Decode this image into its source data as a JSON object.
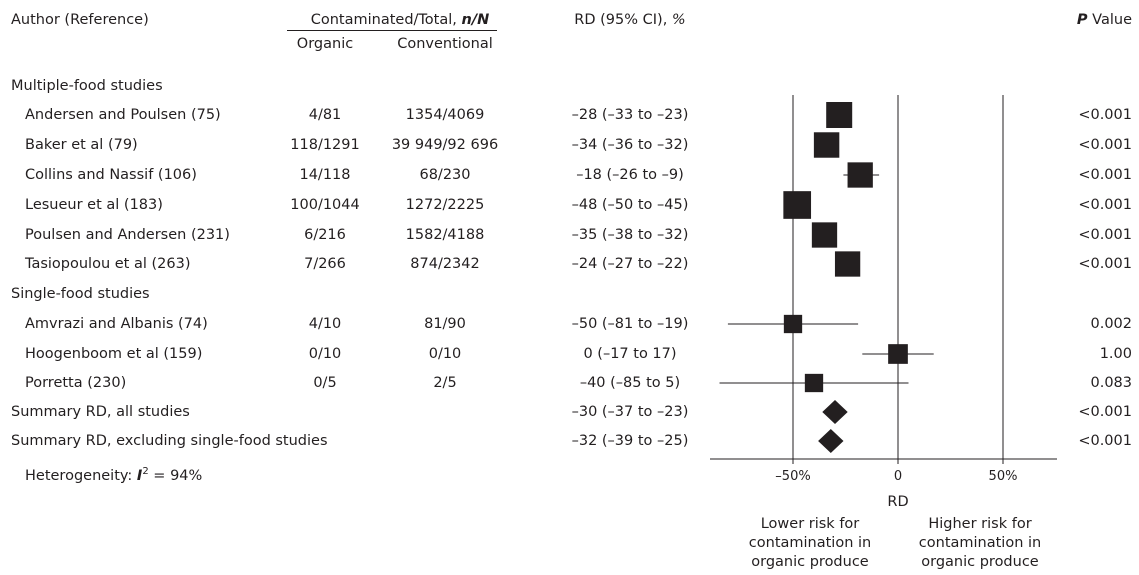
{
  "header": {
    "author": "Author (Reference)",
    "contaminated_prefix": "Contaminated/Total, ",
    "contaminated_italic": "n/N",
    "organic": "Organic",
    "conventional": "Conventional",
    "rd_prefix": "RD (95% CI), ",
    "rd_italic": "%",
    "p_italic": "P",
    "p_rest": " Value"
  },
  "groups": {
    "multi": "Multiple-food studies",
    "single": "Single-food studies"
  },
  "footer": {
    "heterogeneity_prefix": "Heterogeneity: ",
    "heterogeneity_i": "I",
    "heterogeneity_sup": "2",
    "heterogeneity_rest": " = 94%"
  },
  "axis": {
    "ticks": [
      {
        "value": -50,
        "label": "–50%"
      },
      {
        "value": 0,
        "label": "0"
      },
      {
        "value": 50,
        "label": "50%"
      }
    ],
    "xlabel": "RD",
    "left_note": [
      "Lower risk for",
      "contamination in",
      "organic produce"
    ],
    "right_note": [
      "Higher risk for",
      "contamination in",
      "organic produce"
    ]
  },
  "chart_data": {
    "type": "forest",
    "xlabel": "RD",
    "xlim": [
      -80,
      70
    ],
    "reference_lines": [
      -50,
      0,
      50
    ],
    "studies": [
      {
        "group": "multi",
        "author": "Andersen and Poulsen (75)",
        "organic": "4/81",
        "conventional": "1354/4069",
        "rd_text": "–28 (–33 to –23)",
        "rd": -28,
        "lo": -33,
        "hi": -23,
        "p": "<0.001",
        "weight": 1.0
      },
      {
        "group": "multi",
        "author": "Baker et al (79)",
        "organic": "118/1291",
        "conventional": "39 949/92 696",
        "rd_text": "–34 (–36 to –32)",
        "rd": -34,
        "lo": -36,
        "hi": -32,
        "p": "<0.001",
        "weight": 0.96
      },
      {
        "group": "multi",
        "author": "Collins and Nassif (106)",
        "organic": "14/118",
        "conventional": "68/230",
        "rd_text": "–18 (–26 to –9)",
        "rd": -18,
        "lo": -26,
        "hi": -9,
        "p": "<0.001",
        "weight": 0.95
      },
      {
        "group": "multi",
        "author": "Lesueur et al (183)",
        "organic": "100/1044",
        "conventional": "1272/2225",
        "rd_text": "–48 (–50 to –45)",
        "rd": -48,
        "lo": -50,
        "hi": -45,
        "p": "<0.001",
        "weight": 1.12
      },
      {
        "group": "multi",
        "author": "Poulsen and Andersen (231)",
        "organic": "6/216",
        "conventional": "1582/4188",
        "rd_text": "–35 (–38 to –32)",
        "rd": -35,
        "lo": -38,
        "hi": -32,
        "p": "<0.001",
        "weight": 0.95
      },
      {
        "group": "multi",
        "author": "Tasiopoulou et al (263)",
        "organic": "7/266",
        "conventional": "874/2342",
        "rd_text": "–24 (–27 to –22)",
        "rd": -24,
        "lo": -27,
        "hi": -22,
        "p": "<0.001",
        "weight": 0.95
      },
      {
        "group": "single",
        "author": "Amvrazi and Albanis (74)",
        "organic": "4/10",
        "conventional": "81/90",
        "rd_text": "–50 (–81 to –19)",
        "rd": -50,
        "lo": -81,
        "hi": -19,
        "p": "0.002",
        "weight": 0.45
      },
      {
        "group": "single",
        "author": "Hoogenboom et al (159)",
        "organic": "0/10",
        "conventional": "0/10",
        "rd_text": "0 (–17 to 17)",
        "rd": 0,
        "lo": -17,
        "hi": 17,
        "p": "1.00",
        "weight": 0.55
      },
      {
        "group": "single",
        "author": "Porretta (230)",
        "organic": "0/5",
        "conventional": "2/5",
        "rd_text": "–40 (–85 to 5)",
        "rd": -40,
        "lo": -85,
        "hi": 5,
        "p": "0.083",
        "weight": 0.45
      }
    ],
    "summaries": [
      {
        "label": "Summary RD, all studies",
        "rd_text": "–30 (–37 to –23)",
        "rd": -30,
        "lo": -37,
        "hi": -23,
        "p": "<0.001"
      },
      {
        "label": "Summary RD, excluding single-food studies",
        "rd_text": "–32 (–39 to –25)",
        "rd": -32,
        "lo": -39,
        "hi": -25,
        "p": "<0.001"
      }
    ]
  }
}
